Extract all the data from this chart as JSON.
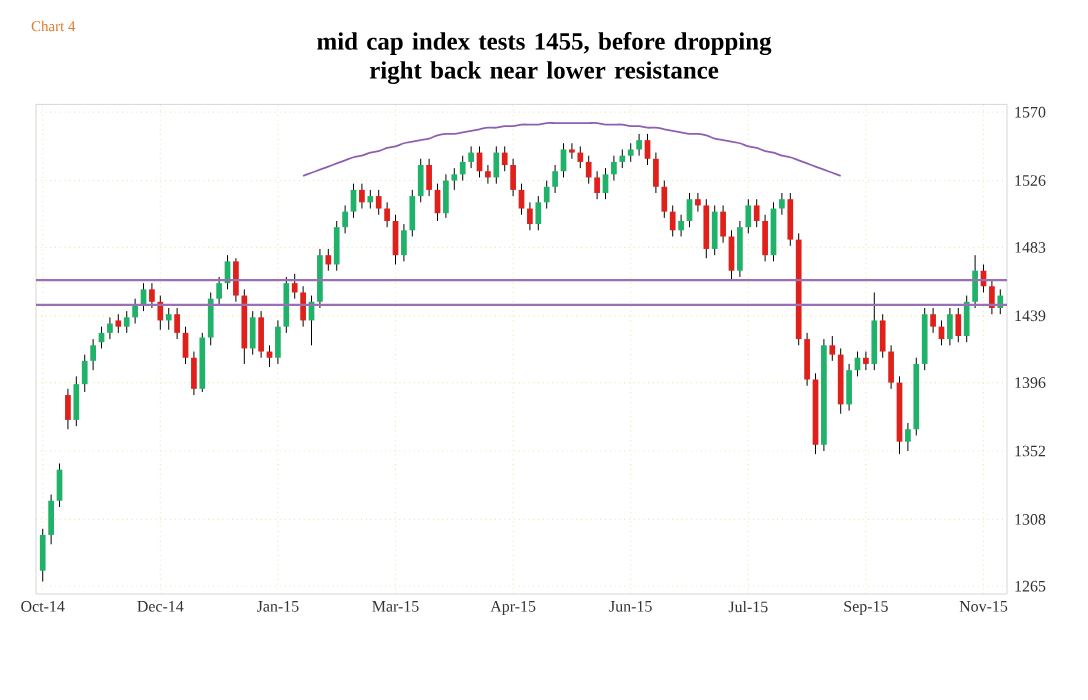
{
  "chart_data": {
    "type": "candlestick",
    "title": "mid cap index tests 1455, before dropping right back near lower resistance",
    "annotations": [
      "Chart 4"
    ],
    "categories": [
      "Oct-14",
      null,
      null,
      null,
      null,
      null,
      null,
      null,
      null,
      null,
      null,
      null,
      null,
      null,
      "Dec-14",
      null,
      null,
      null,
      null,
      null,
      null,
      null,
      null,
      null,
      null,
      null,
      null,
      null,
      "Jan-15",
      null,
      null,
      null,
      null,
      null,
      null,
      null,
      null,
      null,
      null,
      null,
      null,
      null,
      "Mar-15",
      null,
      null,
      null,
      null,
      null,
      null,
      null,
      null,
      null,
      null,
      null,
      null,
      null,
      "Apr-15",
      null,
      null,
      null,
      null,
      null,
      null,
      null,
      null,
      null,
      null,
      null,
      null,
      null,
      "Jun-15",
      null,
      null,
      null,
      null,
      null,
      null,
      null,
      null,
      null,
      null,
      null,
      null,
      null,
      "Jul-15",
      null,
      null,
      null,
      null,
      null,
      null,
      null,
      null,
      null,
      null,
      null,
      null,
      null,
      "Sep-15",
      null,
      null,
      null,
      null,
      null,
      null,
      null,
      null,
      null,
      null,
      null,
      null,
      null,
      "Nov-15",
      null,
      null
    ],
    "ohlc": [
      [
        1275,
        1302,
        1268,
        1298
      ],
      [
        1298,
        1324,
        1292,
        1320
      ],
      [
        1320,
        1344,
        1316,
        1340
      ],
      [
        1388,
        1392,
        1366,
        1372
      ],
      [
        1372,
        1400,
        1368,
        1395
      ],
      [
        1395,
        1414,
        1390,
        1410
      ],
      [
        1410,
        1424,
        1404,
        1420
      ],
      [
        1422,
        1432,
        1418,
        1428
      ],
      [
        1428,
        1438,
        1424,
        1434
      ],
      [
        1436,
        1440,
        1428,
        1432
      ],
      [
        1432,
        1442,
        1428,
        1438
      ],
      [
        1438,
        1450,
        1434,
        1446
      ],
      [
        1446,
        1460,
        1442,
        1456
      ],
      [
        1456,
        1460,
        1444,
        1448
      ],
      [
        1448,
        1452,
        1430,
        1436
      ],
      [
        1436,
        1444,
        1430,
        1440
      ],
      [
        1440,
        1444,
        1424,
        1428
      ],
      [
        1428,
        1432,
        1408,
        1412
      ],
      [
        1412,
        1416,
        1388,
        1392
      ],
      [
        1392,
        1428,
        1390,
        1425
      ],
      [
        1425,
        1454,
        1420,
        1450
      ],
      [
        1450,
        1464,
        1446,
        1460
      ],
      [
        1460,
        1478,
        1456,
        1474
      ],
      [
        1474,
        1476,
        1448,
        1452
      ],
      [
        1452,
        1456,
        1408,
        1418
      ],
      [
        1418,
        1442,
        1414,
        1438
      ],
      [
        1438,
        1442,
        1412,
        1416
      ],
      [
        1416,
        1420,
        1406,
        1412
      ],
      [
        1412,
        1436,
        1408,
        1432
      ],
      [
        1432,
        1464,
        1428,
        1460
      ],
      [
        1460,
        1466,
        1450,
        1454
      ],
      [
        1454,
        1458,
        1432,
        1436
      ],
      [
        1436,
        1452,
        1420,
        1448
      ],
      [
        1448,
        1482,
        1444,
        1478
      ],
      [
        1478,
        1482,
        1468,
        1472
      ],
      [
        1472,
        1500,
        1468,
        1496
      ],
      [
        1496,
        1510,
        1492,
        1506
      ],
      [
        1506,
        1524,
        1502,
        1520
      ],
      [
        1520,
        1524,
        1508,
        1512
      ],
      [
        1512,
        1520,
        1508,
        1516
      ],
      [
        1516,
        1520,
        1504,
        1508
      ],
      [
        1508,
        1512,
        1496,
        1500
      ],
      [
        1500,
        1504,
        1472,
        1478
      ],
      [
        1478,
        1498,
        1474,
        1494
      ],
      [
        1494,
        1520,
        1490,
        1516
      ],
      [
        1516,
        1540,
        1512,
        1536
      ],
      [
        1536,
        1540,
        1516,
        1520
      ],
      [
        1520,
        1524,
        1500,
        1505
      ],
      [
        1505,
        1530,
        1502,
        1526
      ],
      [
        1526,
        1534,
        1520,
        1530
      ],
      [
        1530,
        1542,
        1526,
        1538
      ],
      [
        1538,
        1548,
        1534,
        1544
      ],
      [
        1544,
        1548,
        1528,
        1532
      ],
      [
        1532,
        1536,
        1524,
        1528
      ],
      [
        1528,
        1548,
        1524,
        1544
      ],
      [
        1544,
        1548,
        1532,
        1536
      ],
      [
        1536,
        1540,
        1516,
        1520
      ],
      [
        1520,
        1524,
        1504,
        1508
      ],
      [
        1508,
        1512,
        1494,
        1498
      ],
      [
        1498,
        1516,
        1494,
        1512
      ],
      [
        1512,
        1526,
        1508,
        1522
      ],
      [
        1522,
        1536,
        1518,
        1532
      ],
      [
        1532,
        1550,
        1528,
        1546
      ],
      [
        1546,
        1550,
        1540,
        1544
      ],
      [
        1544,
        1548,
        1534,
        1538
      ],
      [
        1538,
        1542,
        1524,
        1528
      ],
      [
        1528,
        1532,
        1514,
        1518
      ],
      [
        1518,
        1534,
        1514,
        1530
      ],
      [
        1530,
        1542,
        1526,
        1538
      ],
      [
        1538,
        1546,
        1534,
        1542
      ],
      [
        1542,
        1550,
        1538,
        1546
      ],
      [
        1546,
        1556,
        1542,
        1552
      ],
      [
        1552,
        1556,
        1536,
        1540
      ],
      [
        1540,
        1544,
        1518,
        1522
      ],
      [
        1522,
        1526,
        1502,
        1506
      ],
      [
        1506,
        1510,
        1490,
        1494
      ],
      [
        1494,
        1504,
        1490,
        1500
      ],
      [
        1500,
        1518,
        1496,
        1514
      ],
      [
        1514,
        1518,
        1506,
        1510
      ],
      [
        1510,
        1514,
        1476,
        1482
      ],
      [
        1482,
        1510,
        1478,
        1506
      ],
      [
        1506,
        1510,
        1486,
        1490
      ],
      [
        1490,
        1494,
        1462,
        1468
      ],
      [
        1468,
        1500,
        1464,
        1496
      ],
      [
        1496,
        1514,
        1492,
        1510
      ],
      [
        1510,
        1514,
        1496,
        1500
      ],
      [
        1500,
        1504,
        1474,
        1478
      ],
      [
        1478,
        1512,
        1474,
        1508
      ],
      [
        1508,
        1518,
        1504,
        1514
      ],
      [
        1514,
        1518,
        1484,
        1488
      ],
      [
        1488,
        1492,
        1420,
        1424
      ],
      [
        1424,
        1428,
        1394,
        1398
      ],
      [
        1398,
        1402,
        1350,
        1356
      ],
      [
        1356,
        1424,
        1352,
        1420
      ],
      [
        1420,
        1426,
        1410,
        1414
      ],
      [
        1414,
        1418,
        1376,
        1382
      ],
      [
        1382,
        1408,
        1378,
        1404
      ],
      [
        1404,
        1416,
        1400,
        1412
      ],
      [
        1412,
        1416,
        1404,
        1408
      ],
      [
        1408,
        1454,
        1404,
        1436
      ],
      [
        1436,
        1440,
        1412,
        1416
      ],
      [
        1416,
        1420,
        1392,
        1396
      ],
      [
        1396,
        1400,
        1350,
        1358
      ],
      [
        1358,
        1370,
        1352,
        1366
      ],
      [
        1366,
        1412,
        1362,
        1408
      ],
      [
        1408,
        1444,
        1404,
        1440
      ],
      [
        1440,
        1444,
        1428,
        1432
      ],
      [
        1432,
        1436,
        1420,
        1424
      ],
      [
        1424,
        1444,
        1420,
        1440
      ],
      [
        1440,
        1444,
        1422,
        1426
      ],
      [
        1426,
        1452,
        1422,
        1448
      ],
      [
        1448,
        1478,
        1444,
        1468
      ],
      [
        1468,
        1472,
        1454,
        1458
      ],
      [
        1458,
        1462,
        1440,
        1444
      ],
      [
        1444,
        1456,
        1440,
        1452
      ]
    ],
    "colors": [
      "#21b26a",
      "#21b26a",
      "#21b26a",
      "#e0201b",
      "#21b26a",
      "#21b26a",
      "#21b26a",
      "#21b26a",
      "#21b26a",
      "#e0201b",
      "#21b26a",
      "#21b26a",
      "#21b26a",
      "#e0201b",
      "#e0201b",
      "#21b26a",
      "#e0201b",
      "#e0201b",
      "#e0201b",
      "#21b26a",
      "#21b26a",
      "#21b26a",
      "#21b26a",
      "#e0201b",
      "#e0201b",
      "#21b26a",
      "#e0201b",
      "#e0201b",
      "#21b26a",
      "#21b26a",
      "#e0201b",
      "#e0201b",
      "#21b26a",
      "#21b26a",
      "#e0201b",
      "#21b26a",
      "#21b26a",
      "#21b26a",
      "#e0201b",
      "#21b26a",
      "#e0201b",
      "#e0201b",
      "#e0201b",
      "#21b26a",
      "#21b26a",
      "#21b26a",
      "#e0201b",
      "#e0201b",
      "#21b26a",
      "#21b26a",
      "#21b26a",
      "#21b26a",
      "#e0201b",
      "#e0201b",
      "#21b26a",
      "#e0201b",
      "#e0201b",
      "#e0201b",
      "#e0201b",
      "#21b26a",
      "#21b26a",
      "#21b26a",
      "#21b26a",
      "#e0201b",
      "#e0201b",
      "#e0201b",
      "#e0201b",
      "#21b26a",
      "#21b26a",
      "#21b26a",
      "#21b26a",
      "#21b26a",
      "#e0201b",
      "#e0201b",
      "#e0201b",
      "#e0201b",
      "#21b26a",
      "#21b26a",
      "#e0201b",
      "#e0201b",
      "#21b26a",
      "#e0201b",
      "#e0201b",
      "#21b26a",
      "#21b26a",
      "#e0201b",
      "#e0201b",
      "#21b26a",
      "#21b26a",
      "#e0201b",
      "#e0201b",
      "#e0201b",
      "#e0201b",
      "#21b26a",
      "#e0201b",
      "#e0201b",
      "#21b26a",
      "#21b26a",
      "#e0201b",
      "#21b26a",
      "#e0201b",
      "#e0201b",
      "#e0201b",
      "#21b26a",
      "#21b26a",
      "#21b26a",
      "#e0201b",
      "#e0201b",
      "#21b26a",
      "#e0201b",
      "#21b26a",
      "#21b26a",
      "#e0201b",
      "#e0201b",
      "#21b26a"
    ],
    "ylim": [
      1260,
      1575
    ],
    "yticks": [
      1265,
      1308,
      1352,
      1396,
      1439,
      1483,
      1526,
      1570
    ],
    "grid": true,
    "series": [
      {
        "type": "line",
        "color": "#8e5fb0",
        "values": [
          null,
          null,
          null,
          null,
          null,
          null,
          null,
          null,
          null,
          null,
          null,
          null,
          null,
          null,
          null,
          null,
          null,
          null,
          null,
          null,
          null,
          null,
          null,
          null,
          null,
          null,
          null,
          null,
          null,
          null,
          null,
          1529,
          1531,
          1533,
          1535,
          1537,
          1539,
          1541,
          1542,
          1544,
          1545,
          1547,
          1548,
          1550,
          1551,
          1552,
          1553,
          1555,
          1556,
          1556,
          1557,
          1558,
          1559,
          1560,
          1560,
          1561,
          1561,
          1562,
          1562,
          1562,
          1563,
          1563,
          1563,
          1563,
          1563,
          1563,
          1563,
          1562,
          1562,
          1562,
          1561,
          1561,
          1560,
          1560,
          1559,
          1558,
          1557,
          1556,
          1556,
          1555,
          1553,
          1552,
          1551,
          1550,
          1548,
          1547,
          1545,
          1544,
          1542,
          1541,
          1539,
          1537,
          1535,
          1533,
          1531,
          1529,
          null,
          null,
          null,
          null,
          null,
          null,
          null,
          null,
          null,
          null,
          null,
          null,
          null,
          null,
          null,
          null,
          null,
          null,
          null
        ]
      }
    ],
    "ref_lines": [
      {
        "axis": "y",
        "value": 1462,
        "color": "#9b6fb5"
      },
      {
        "axis": "y",
        "value": 1446,
        "color": "#9b6fb5"
      }
    ]
  }
}
